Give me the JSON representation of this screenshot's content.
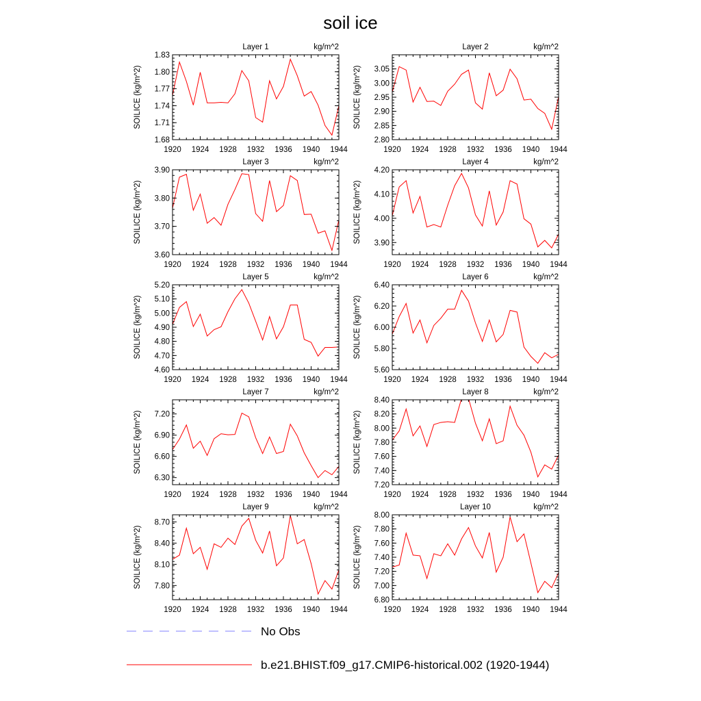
{
  "title": "soil ice",
  "colors": {
    "series": "#ff0000",
    "no_obs": "#8080ff",
    "axis": "#000000"
  },
  "legend": [
    {
      "label": "No Obs",
      "style": "dashed",
      "color": "#8080ff"
    },
    {
      "label": "b.e21.BHIST.f09_g17.CMIP6-historical.002 (1920-1944)",
      "style": "solid",
      "color": "#ff0000"
    }
  ],
  "chart_data": [
    {
      "type": "line",
      "title": "Layer 1",
      "units": "kg/m^2",
      "ylabel": "SOILICE  (kg/m^2)",
      "xlim": [
        1920,
        1944
      ],
      "ylim": [
        1.68,
        1.83
      ],
      "xticks": [
        1920,
        1924,
        1928,
        1932,
        1936,
        1940,
        1944
      ],
      "yticks": [
        "1.68",
        "1.71",
        "1.74",
        "1.77",
        "1.80",
        "1.83"
      ],
      "x": [
        1920,
        1921,
        1922,
        1923,
        1924,
        1925,
        1926,
        1927,
        1928,
        1929,
        1930,
        1931,
        1932,
        1933,
        1934,
        1935,
        1936,
        1937,
        1938,
        1939,
        1940,
        1941,
        1942,
        1943,
        1944
      ],
      "values": [
        1.758,
        1.817,
        1.783,
        1.741,
        1.799,
        1.745,
        1.745,
        1.746,
        1.745,
        1.761,
        1.802,
        1.784,
        1.719,
        1.711,
        1.784,
        1.752,
        1.774,
        1.822,
        1.793,
        1.757,
        1.765,
        1.741,
        1.705,
        1.688,
        1.74
      ]
    },
    {
      "type": "line",
      "title": "Layer 2",
      "units": "kg/m^2",
      "ylabel": "SOILICE  (kg/m^2)",
      "xlim": [
        1920,
        1944
      ],
      "ylim": [
        2.8,
        3.1
      ],
      "xticks": [
        1920,
        1924,
        1928,
        1932,
        1936,
        1940,
        1944
      ],
      "yticks": [
        "2.80",
        "2.85",
        "2.90",
        "2.95",
        "3.00",
        "3.05"
      ],
      "x": [
        1920,
        1921,
        1922,
        1923,
        1924,
        1925,
        1926,
        1927,
        1928,
        1929,
        1930,
        1931,
        1932,
        1933,
        1934,
        1935,
        1936,
        1937,
        1938,
        1939,
        1940,
        1941,
        1942,
        1943,
        1944
      ],
      "values": [
        2.968,
        3.058,
        3.046,
        2.933,
        2.985,
        2.935,
        2.936,
        2.921,
        2.971,
        2.996,
        3.031,
        3.046,
        2.93,
        2.908,
        3.036,
        2.955,
        2.975,
        3.049,
        3.015,
        2.94,
        2.943,
        2.91,
        2.893,
        2.837,
        2.952
      ]
    },
    {
      "type": "line",
      "title": "Layer 3",
      "units": "kg/m^2",
      "ylabel": "SOILICE  (kg/m^2)",
      "xlim": [
        1920,
        1944
      ],
      "ylim": [
        3.6,
        3.9
      ],
      "xticks": [
        1920,
        1924,
        1928,
        1932,
        1936,
        1940,
        1944
      ],
      "yticks": [
        "3.60",
        "3.70",
        "3.80",
        "3.90"
      ],
      "x": [
        1920,
        1921,
        1922,
        1923,
        1924,
        1925,
        1926,
        1927,
        1928,
        1929,
        1930,
        1931,
        1932,
        1933,
        1934,
        1935,
        1936,
        1937,
        1938,
        1939,
        1940,
        1941,
        1942,
        1943,
        1944
      ],
      "values": [
        3.764,
        3.874,
        3.884,
        3.757,
        3.814,
        3.711,
        3.731,
        3.704,
        3.778,
        3.83,
        3.886,
        3.883,
        3.745,
        3.718,
        3.862,
        3.752,
        3.774,
        3.879,
        3.862,
        3.742,
        3.743,
        3.676,
        3.684,
        3.615,
        3.723
      ]
    },
    {
      "type": "line",
      "title": "Layer 4",
      "units": "kg/m^2",
      "ylabel": "SOILICE  (kg/m^2)",
      "xlim": [
        1920,
        1944
      ],
      "ylim": [
        3.85,
        4.2
      ],
      "xticks": [
        1920,
        1924,
        1928,
        1932,
        1936,
        1940,
        1944
      ],
      "yticks": [
        "3.90",
        "4.00",
        "4.10",
        "4.20"
      ],
      "x": [
        1920,
        1921,
        1922,
        1923,
        1924,
        1925,
        1926,
        1927,
        1928,
        1929,
        1930,
        1931,
        1932,
        1933,
        1934,
        1935,
        1936,
        1937,
        1938,
        1939,
        1940,
        1941,
        1942,
        1943,
        1944
      ],
      "values": [
        4.01,
        4.129,
        4.155,
        4.022,
        4.09,
        3.964,
        3.974,
        3.964,
        4.054,
        4.134,
        4.185,
        4.125,
        4.014,
        3.968,
        4.113,
        3.972,
        4.026,
        4.155,
        4.141,
        3.998,
        3.976,
        3.882,
        3.909,
        3.878,
        3.935
      ]
    },
    {
      "type": "line",
      "title": "Layer 5",
      "units": "kg/m^2",
      "ylabel": "SOILICE  (kg/m^2)",
      "xlim": [
        1920,
        1944
      ],
      "ylim": [
        4.6,
        5.2
      ],
      "xticks": [
        1920,
        1924,
        1928,
        1932,
        1936,
        1940,
        1944
      ],
      "yticks": [
        "4.60",
        "4.70",
        "4.80",
        "4.90",
        "5.00",
        "5.10",
        "5.20"
      ],
      "x": [
        1920,
        1921,
        1922,
        1923,
        1924,
        1925,
        1926,
        1927,
        1928,
        1929,
        1930,
        1931,
        1932,
        1933,
        1934,
        1935,
        1936,
        1937,
        1938,
        1939,
        1940,
        1941,
        1942,
        1943,
        1944
      ],
      "values": [
        4.92,
        5.04,
        5.081,
        4.905,
        4.992,
        4.838,
        4.883,
        4.903,
        5.01,
        5.101,
        5.166,
        5.071,
        4.942,
        4.81,
        4.975,
        4.818,
        4.903,
        5.057,
        5.057,
        4.814,
        4.793,
        4.696,
        4.757,
        4.757,
        4.76
      ]
    },
    {
      "type": "line",
      "title": "Layer 6",
      "units": "kg/m^2",
      "ylabel": "SOILICE  (kg/m^2)",
      "xlim": [
        1920,
        1944
      ],
      "ylim": [
        5.6,
        6.4
      ],
      "xticks": [
        1920,
        1924,
        1928,
        1932,
        1936,
        1940,
        1944
      ],
      "yticks": [
        "5.60",
        "5.80",
        "6.00",
        "6.20",
        "6.40"
      ],
      "x": [
        1920,
        1921,
        1922,
        1923,
        1924,
        1925,
        1926,
        1927,
        1928,
        1929,
        1930,
        1931,
        1932,
        1933,
        1934,
        1935,
        1936,
        1937,
        1938,
        1939,
        1940,
        1941,
        1942,
        1943,
        1944
      ],
      "values": [
        5.935,
        6.1,
        6.224,
        5.945,
        6.068,
        5.853,
        6.017,
        6.084,
        6.17,
        6.17,
        6.348,
        6.245,
        6.041,
        5.866,
        6.068,
        5.862,
        5.932,
        6.159,
        6.143,
        5.813,
        5.725,
        5.66,
        5.76,
        5.712,
        5.745
      ]
    },
    {
      "type": "line",
      "title": "Layer 7",
      "units": "kg/m^2",
      "ylabel": "SOILICE  (kg/m^2)",
      "xlim": [
        1920,
        1944
      ],
      "ylim": [
        6.2,
        7.4
      ],
      "xticks": [
        1920,
        1924,
        1928,
        1932,
        1936,
        1940,
        1944
      ],
      "yticks": [
        "6.30",
        "6.60",
        "6.90",
        "7.20"
      ],
      "x": [
        1920,
        1921,
        1922,
        1923,
        1924,
        1925,
        1926,
        1927,
        1928,
        1929,
        1930,
        1931,
        1932,
        1933,
        1934,
        1935,
        1936,
        1937,
        1938,
        1939,
        1940,
        1941,
        1942,
        1943,
        1944
      ],
      "values": [
        6.695,
        6.845,
        7.044,
        6.715,
        6.815,
        6.613,
        6.85,
        6.92,
        6.905,
        6.91,
        7.212,
        7.16,
        6.864,
        6.64,
        6.875,
        6.64,
        6.67,
        7.055,
        6.89,
        6.65,
        6.47,
        6.3,
        6.4,
        6.34,
        6.46
      ]
    },
    {
      "type": "line",
      "title": "Layer 8",
      "units": "kg/m^2",
      "ylabel": "SOILICE  (kg/m^2)",
      "xlim": [
        1920,
        1944
      ],
      "ylim": [
        7.2,
        8.4
      ],
      "xticks": [
        1920,
        1924,
        1928,
        1932,
        1936,
        1940,
        1944
      ],
      "yticks": [
        "7.20",
        "7.40",
        "7.60",
        "7.80",
        "8.00",
        "8.20",
        "8.40"
      ],
      "x": [
        1920,
        1921,
        1922,
        1923,
        1924,
        1925,
        1926,
        1927,
        1928,
        1929,
        1930,
        1931,
        1932,
        1933,
        1934,
        1935,
        1936,
        1937,
        1938,
        1939,
        1940,
        1941,
        1942,
        1943,
        1944
      ],
      "values": [
        7.83,
        7.96,
        8.27,
        7.89,
        8.03,
        7.74,
        8.05,
        8.08,
        8.09,
        8.08,
        8.42,
        8.42,
        8.07,
        7.82,
        8.13,
        7.78,
        7.82,
        8.31,
        8.04,
        7.9,
        7.66,
        7.31,
        7.48,
        7.42,
        7.62
      ]
    },
    {
      "type": "line",
      "title": "Layer 9",
      "units": "kg/m^2",
      "ylabel": "SOILICE  (kg/m^2)",
      "xlim": [
        1920,
        1944
      ],
      "ylim": [
        7.6,
        8.8
      ],
      "xticks": [
        1920,
        1924,
        1928,
        1932,
        1936,
        1940,
        1944
      ],
      "yticks": [
        "7.80",
        "8.10",
        "8.40",
        "8.70"
      ],
      "x": [
        1920,
        1921,
        1922,
        1923,
        1924,
        1925,
        1926,
        1927,
        1928,
        1929,
        1930,
        1931,
        1932,
        1933,
        1934,
        1935,
        1936,
        1937,
        1938,
        1939,
        1940,
        1941,
        1942,
        1943,
        1944
      ],
      "values": [
        8.17,
        8.23,
        8.61,
        8.25,
        8.34,
        8.03,
        8.39,
        8.34,
        8.47,
        8.38,
        8.64,
        8.75,
        8.44,
        8.26,
        8.57,
        8.08,
        8.19,
        8.79,
        8.39,
        8.45,
        8.11,
        7.68,
        7.87,
        7.75,
        8.02
      ]
    },
    {
      "type": "line",
      "title": "Layer 10",
      "units": "kg/m^2",
      "ylabel": "SOILICE  (kg/m^2)",
      "xlim": [
        1920,
        1944
      ],
      "ylim": [
        6.8,
        8.0
      ],
      "xticks": [
        1920,
        1924,
        1928,
        1932,
        1936,
        1940,
        1944
      ],
      "yticks": [
        "6.80",
        "7.00",
        "7.20",
        "7.40",
        "7.60",
        "7.80",
        "8.00"
      ],
      "x": [
        1920,
        1921,
        1922,
        1923,
        1924,
        1925,
        1926,
        1927,
        1928,
        1929,
        1930,
        1931,
        1932,
        1933,
        1934,
        1935,
        1936,
        1937,
        1938,
        1939,
        1940,
        1941,
        1942,
        1943,
        1944
      ],
      "values": [
        7.26,
        7.29,
        7.74,
        7.43,
        7.42,
        7.1,
        7.45,
        7.42,
        7.59,
        7.43,
        7.66,
        7.82,
        7.56,
        7.39,
        7.75,
        7.19,
        7.4,
        7.97,
        7.62,
        7.73,
        7.32,
        6.9,
        7.06,
        6.97,
        7.18
      ]
    }
  ]
}
